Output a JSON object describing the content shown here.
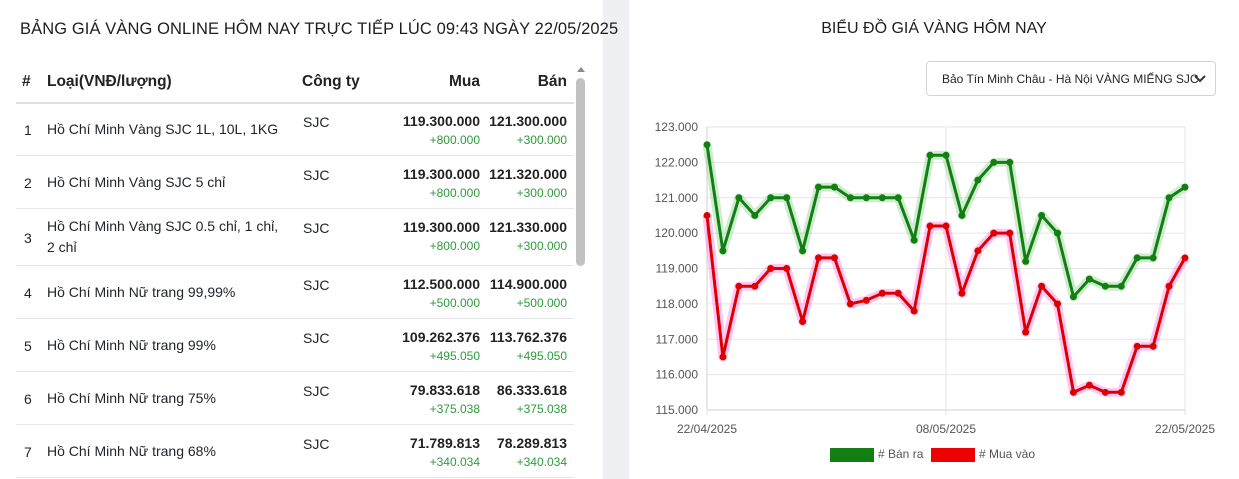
{
  "left": {
    "title": "BẢNG GIÁ VÀNG ONLINE HÔM NAY TRỰC TIẾP LÚC 09:43 NGÀY 22/05/2025",
    "headers": {
      "num": "#",
      "type": "Loại(VNĐ/lượng)",
      "company": "Công ty",
      "buy": "Mua",
      "sell": "Bán"
    },
    "rows": [
      {
        "num": "1",
        "type": "Hồ Chí Minh Vàng SJC 1L, 10L, 1KG",
        "company": "SJC",
        "buy": "119.300.000",
        "buy_change": "+800.000",
        "sell": "121.300.000",
        "sell_change": "+300.000"
      },
      {
        "num": "2",
        "type": "Hồ Chí Minh Vàng SJC 5 chỉ",
        "company": "SJC",
        "buy": "119.300.000",
        "buy_change": "+800.000",
        "sell": "121.320.000",
        "sell_change": "+300.000"
      },
      {
        "num": "3",
        "type": "Hồ Chí Minh Vàng SJC 0.5 chỉ, 1 chỉ, 2 chỉ",
        "company": "SJC",
        "buy": "119.300.000",
        "buy_change": "+800.000",
        "sell": "121.330.000",
        "sell_change": "+300.000"
      },
      {
        "num": "4",
        "type": "Hồ Chí Minh Nữ trang 99,99%",
        "company": "SJC",
        "buy": "112.500.000",
        "buy_change": "+500.000",
        "sell": "114.900.000",
        "sell_change": "+500.000"
      },
      {
        "num": "5",
        "type": "Hồ Chí Minh Nữ trang 99%",
        "company": "SJC",
        "buy": "109.262.376",
        "buy_change": "+495.050",
        "sell": "113.762.376",
        "sell_change": "+495.050"
      },
      {
        "num": "6",
        "type": "Hồ Chí Minh Nữ trang 75%",
        "company": "SJC",
        "buy": "79.833.618",
        "buy_change": "+375.038",
        "sell": "86.333.618",
        "sell_change": "+375.038"
      },
      {
        "num": "7",
        "type": "Hồ Chí Minh Nữ trang 68%",
        "company": "SJC",
        "buy": "71.789.813",
        "buy_change": "+340.034",
        "sell": "78.289.813",
        "sell_change": "+340.034"
      }
    ]
  },
  "right": {
    "title": "BIỂU ĐỒ GIÁ VÀNG HÔM NAY",
    "select": {
      "value": "Bảo Tín Minh Châu - Hà Nội VÀNG MIẾNG SJC"
    }
  },
  "chart_data": {
    "type": "line",
    "title": "",
    "xlabel": "",
    "ylabel": "",
    "ylim": [
      115,
      123
    ],
    "yticks": [
      "115.000",
      "116.000",
      "117.000",
      "118.000",
      "119.000",
      "120.000",
      "121.000",
      "122.000",
      "123.000"
    ],
    "xtick_labels": [
      "22/04/2025",
      "08/05/2025",
      "22/05/2025"
    ],
    "grid": true,
    "legend_position": "bottom",
    "colors": {
      "sell": "#117f11",
      "buy": "#dd0000"
    },
    "series": [
      {
        "name": "# Bán ra",
        "values": [
          122.5,
          119.5,
          121.0,
          120.5,
          121.0,
          121.0,
          119.5,
          121.3,
          121.3,
          121.0,
          121.0,
          121.0,
          121.0,
          119.8,
          122.2,
          122.2,
          120.5,
          121.5,
          122.0,
          122.0,
          119.2,
          120.5,
          120.0,
          118.2,
          118.7,
          118.5,
          118.5,
          119.3,
          119.3,
          121.0,
          121.3
        ]
      },
      {
        "name": "# Mua vào",
        "values": [
          120.5,
          116.5,
          118.5,
          118.5,
          119.0,
          119.0,
          117.5,
          119.3,
          119.3,
          118.0,
          118.1,
          118.3,
          118.3,
          117.8,
          120.2,
          120.2,
          118.3,
          119.5,
          120.0,
          120.0,
          117.2,
          118.5,
          118.0,
          115.5,
          115.7,
          115.5,
          115.5,
          116.8,
          116.8,
          118.5,
          119.3
        ]
      }
    ]
  }
}
